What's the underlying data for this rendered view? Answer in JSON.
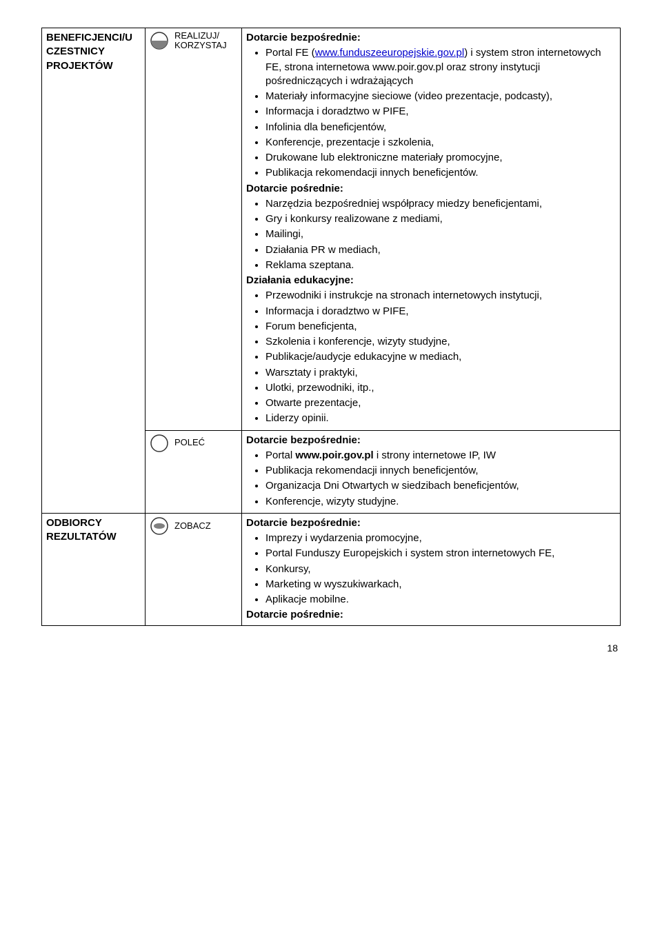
{
  "rows": [
    {
      "label": "BENEFICJENCI/U CZESTNICY PROJEKTÓW",
      "icon": {
        "name": "realizuj-icon",
        "label": "REALIZUJ/ KORZYSTAJ",
        "style": "bottom-half"
      },
      "sections": [
        {
          "heading": "Dotarcie bezpośrednie:",
          "items": [
            {
              "pre": "Portal FE (",
              "link": "www.funduszeeuropejskie.gov.pl",
              "post": ") i system stron internetowych FE, strona internetowa www.poir.gov.pl oraz strony instytucji pośredniczących i wdrażających"
            },
            {
              "text": "Materiały informacyjne sieciowe (video prezentacje, podcasty),"
            },
            {
              "text": "Informacja i doradztwo w PIFE,"
            },
            {
              "text": "Infolinia dla beneficjentów,"
            },
            {
              "text": "Konferencje, prezentacje i szkolenia,"
            },
            {
              "text": "Drukowane lub elektroniczne materiały promocyjne,"
            },
            {
              "text": "Publikacja rekomendacji innych beneficjentów."
            }
          ]
        },
        {
          "heading": "Dotarcie pośrednie:",
          "items": [
            {
              "text": "Narzędzia bezpośredniej współpracy miedzy beneficjentami,"
            },
            {
              "text": "Gry i konkursy realizowane z mediami,"
            },
            {
              "text": "Mailingi,"
            },
            {
              "text": "Działania PR w mediach,"
            },
            {
              "text": "Reklama szeptana."
            }
          ]
        },
        {
          "heading": "Działania edukacyjne:",
          "items": [
            {
              "text": "Przewodniki i instrukcje na stronach internetowych instytucji,"
            },
            {
              "text": "Informacja i doradztwo w PIFE,"
            },
            {
              "text": "Forum beneficjenta,"
            },
            {
              "text": "Szkolenia i konferencje, wizyty studyjne,"
            },
            {
              "text": "Publikacje/audycje edukacyjne w mediach,"
            },
            {
              "text": "Warsztaty i praktyki,"
            },
            {
              "text": "Ulotki, przewodniki, itp.,"
            },
            {
              "text": "Otwarte prezentacje,"
            },
            {
              "text": "Liderzy opinii."
            }
          ]
        }
      ]
    },
    {
      "label": "",
      "icon": {
        "name": "polec-icon",
        "label": "POLEĆ",
        "style": "outline"
      },
      "sections": [
        {
          "heading": "Dotarcie bezpośrednie:",
          "items": [
            {
              "pre": "Portal ",
              "bold": "www.poir.gov.pl",
              "post": " i strony internetowe IP, IW"
            },
            {
              "text": "Publikacja rekomendacji innych beneficjentów,"
            },
            {
              "text": "Organizacja Dni Otwartych w siedzibach beneficjentów,"
            },
            {
              "text": "Konferencje, wizyty studyjne."
            }
          ]
        }
      ]
    },
    {
      "label": "ODBIORCY REZULTATÓW",
      "icon": {
        "name": "zobacz-icon",
        "label": "ZOBACZ",
        "style": "eye"
      },
      "sections": [
        {
          "heading": "Dotarcie bezpośrednie:",
          "items": [
            {
              "text": "Imprezy i wydarzenia promocyjne,"
            },
            {
              "text": "Portal Funduszy Europejskich i system stron internetowych FE,"
            },
            {
              "text": "Konkursy,"
            },
            {
              "text": "Marketing w wyszukiwarkach,"
            },
            {
              "text": "Aplikacje mobilne."
            }
          ]
        },
        {
          "heading": "Dotarcie pośrednie:",
          "items": []
        }
      ]
    }
  ],
  "pageNumber": "18",
  "colors": {
    "border": "#000000",
    "text": "#000000",
    "link": "#0000cc",
    "iconStroke": "#333333",
    "iconFill": "#808080"
  }
}
